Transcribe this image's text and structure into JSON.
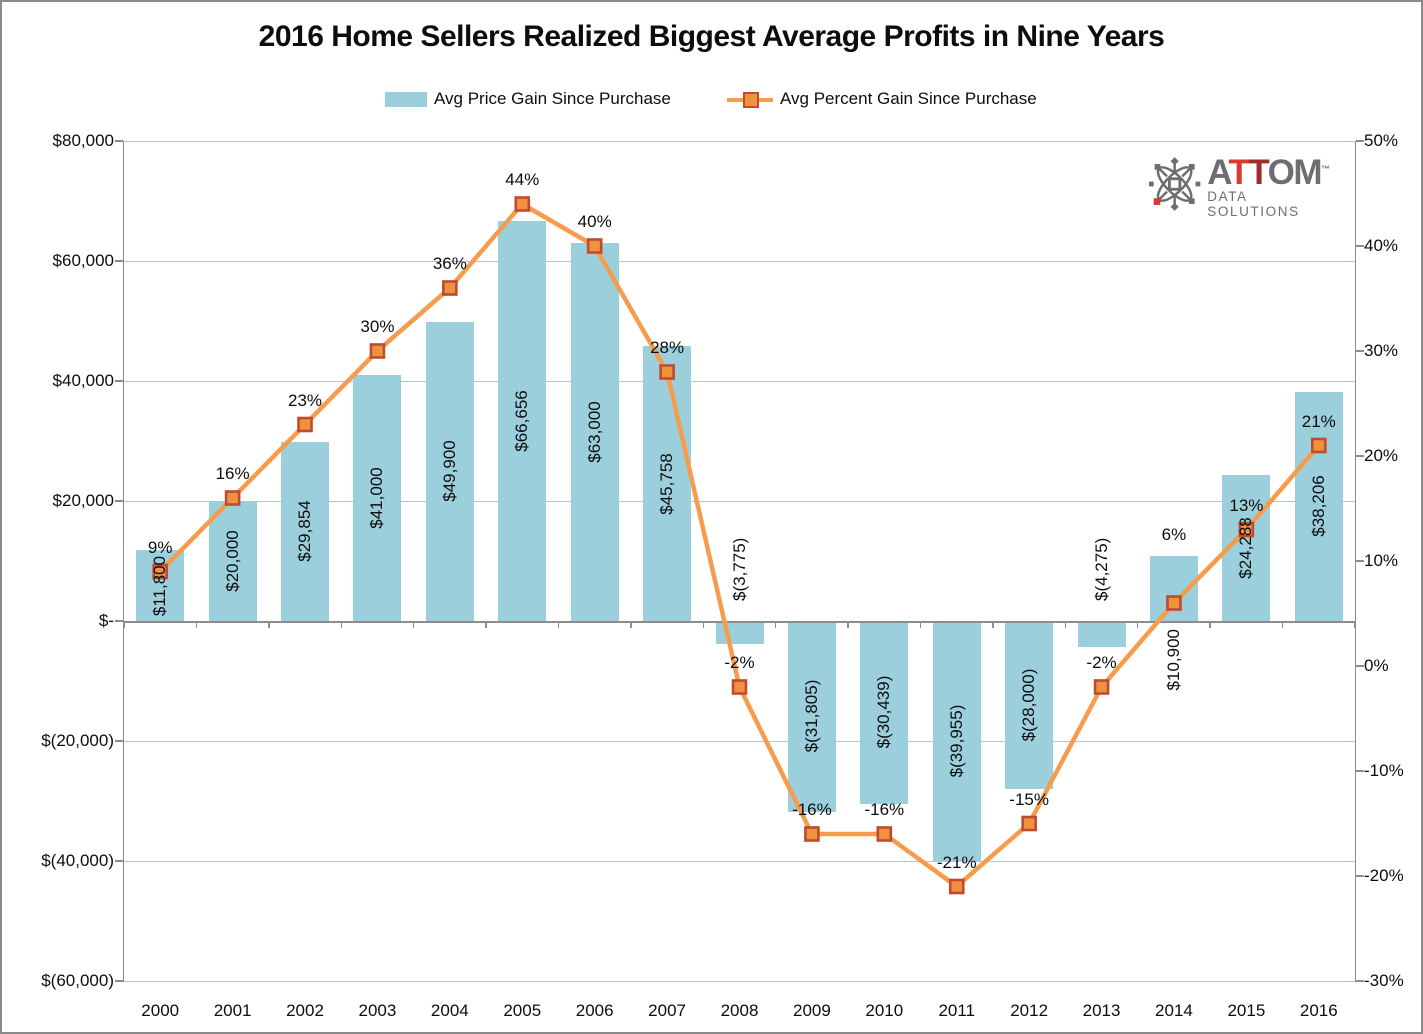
{
  "title": "2016 Home Sellers Realized Biggest Average Profits in Nine Years",
  "legend": {
    "bar_label": "Avg Price Gain Since Purchase",
    "line_label": "Avg Percent Gain Since Purchase"
  },
  "logo": {
    "letter_a": "A",
    "letter_t1": "T",
    "letter_t2": "T",
    "letters_om": "OM",
    "trademark": "™",
    "subtitle": "DATA SOLUTIONS"
  },
  "colors": {
    "bar_fill": "#9BCFDC",
    "line": "#F79B4D",
    "marker_fill": "#F0913D",
    "marker_border": "#BE4B30",
    "gridline": "#AFC3E0",
    "axis": "#8C8C8C",
    "text": "#0d0d0d",
    "logo_gray": "#6D6E71",
    "logo_red_bright": "#D93A2B",
    "logo_red_dark": "#A32C26"
  },
  "chart_data": {
    "type": "bar+line combo",
    "title": "2016 Home Sellers Realized Biggest Average Profits in Nine Years",
    "categories": [
      "2000",
      "2001",
      "2002",
      "2003",
      "2004",
      "2005",
      "2006",
      "2007",
      "2008",
      "2009",
      "2010",
      "2011",
      "2012",
      "2013",
      "2014",
      "2015",
      "2016"
    ],
    "series": [
      {
        "name": "Avg Price Gain Since Purchase",
        "type": "bar",
        "axis": "left",
        "values": [
          11800,
          20000,
          29854,
          41000,
          49900,
          66656,
          63000,
          45758,
          -3775,
          -31805,
          -30439,
          -39955,
          -28000,
          -4275,
          10900,
          24288,
          38206
        ],
        "labels": [
          "$11,800",
          "$20,000",
          "$29,854",
          "$41,000",
          "$49,900",
          "$66,656",
          "$63,000",
          "$45,758",
          "$(3,775)",
          "$(31,805)",
          "$(30,439)",
          "$(39,955)",
          "$(28,000)",
          "$(4,275)",
          "$10,900",
          "$24,288",
          "$38,206"
        ]
      },
      {
        "name": "Avg Percent Gain Since Purchase",
        "type": "line",
        "axis": "right",
        "values": [
          9,
          16,
          23,
          30,
          36,
          44,
          40,
          28,
          -2,
          -16,
          -16,
          -21,
          -15,
          -2,
          6,
          13,
          21
        ],
        "labels": [
          "9%",
          "16%",
          "23%",
          "30%",
          "36%",
          "44%",
          "40%",
          "28%",
          "-2%",
          "-16%",
          "-16%",
          "-21%",
          "-15%",
          "-2%",
          "6%",
          "13%",
          "21%"
        ]
      }
    ],
    "left_axis": {
      "ticks": [
        "$80,000",
        "$60,000",
        "$40,000",
        "$20,000",
        "$-",
        "$(20,000)",
        "$(40,000)",
        "$(60,000)"
      ],
      "min": -60000,
      "max": 80000,
      "step": 20000
    },
    "right_axis": {
      "ticks": [
        "50%",
        "40%",
        "30%",
        "20%",
        "10%",
        "0%",
        "-10%",
        "-20%",
        "-30%"
      ],
      "min": -30,
      "max": 50,
      "step": 10
    },
    "grid": "horizontal",
    "legend_position": "top"
  }
}
